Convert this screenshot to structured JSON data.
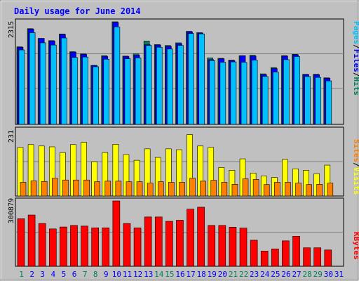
{
  "colors": {
    "background": "#c0c0c0",
    "title": "#0000ff",
    "hits": "#00805c",
    "files": "#0000ff",
    "pages": "#00c0ff",
    "visits": "#ffff00",
    "sites": "#ff8000",
    "kbytes": "#ff0000",
    "weekday_label": "#0000ff",
    "weekend_label": "#00805c"
  },
  "chart_data": {
    "type": "bar",
    "title": "Daily usage for June 2014",
    "days": [
      "1",
      "2",
      "3",
      "4",
      "5",
      "6",
      "7",
      "8",
      "9",
      "10",
      "11",
      "12",
      "13",
      "14",
      "15",
      "16",
      "17",
      "18",
      "19",
      "20",
      "21",
      "22",
      "23",
      "24",
      "25",
      "26",
      "27",
      "28",
      "29",
      "30",
      "31"
    ],
    "weekend_days": [
      "1",
      "7",
      "8",
      "14",
      "15",
      "21",
      "22",
      "28",
      "29"
    ],
    "panels": [
      {
        "id": "hits_files_pages",
        "scale_label": "2315",
        "ylim": [
          0,
          2315
        ],
        "legend": [
          "Pages",
          "/",
          "Files",
          "/",
          "Hits"
        ],
        "series": [
          {
            "name": "Hits",
            "values": [
              1750,
              2160,
              1940,
              1890,
              2040,
              1640,
              1590,
              1330,
              1550,
              2315,
              1540,
              1590,
              1880,
              1800,
              1780,
              1840,
              2100,
              2070,
              1500,
              1490,
              1450,
              1550,
              1560,
              1140,
              1280,
              1550,
              1580,
              1130,
              1130,
              1050,
              0
            ]
          },
          {
            "name": "Files",
            "values": [
              1740,
              2150,
              1940,
              1880,
              2030,
              1630,
              1580,
              1330,
              1530,
              2300,
              1530,
              1560,
              1800,
              1790,
              1760,
              1820,
              2090,
              2060,
              1460,
              1480,
              1440,
              1550,
              1540,
              1120,
              1260,
              1540,
              1570,
              1120,
              1120,
              1040,
              0
            ]
          },
          {
            "name": "Pages",
            "values": [
              1680,
              2070,
              1840,
              1790,
              1950,
              1510,
              1520,
              1300,
              1470,
              2200,
              1480,
              1500,
              1780,
              1740,
              1700,
              1780,
              2050,
              2040,
              1440,
              1400,
              1410,
              1400,
              1450,
              1080,
              1180,
              1460,
              1530,
              1080,
              1060,
              980,
              0
            ]
          }
        ]
      },
      {
        "id": "visits_sites",
        "scale_label": "231",
        "ylim": [
          0,
          231
        ],
        "legend": [
          "Sites",
          "/",
          "Visits"
        ],
        "series": [
          {
            "name": "Visits",
            "values": [
              170,
              180,
              175,
              172,
              152,
              180,
              188,
              120,
              152,
              181,
              145,
              125,
              165,
              135,
              165,
              162,
              215,
              175,
              170,
              100,
              90,
              130,
              80,
              70,
              65,
              128,
              95,
              90,
              78,
              108,
              0
            ]
          },
          {
            "name": "Sites",
            "values": [
              48,
              53,
              51,
              62,
              56,
              56,
              56,
              50,
              52,
              52,
              50,
              50,
              45,
              50,
              48,
              48,
              62,
              52,
              55,
              48,
              41,
              60,
              58,
              40,
              48,
              48,
              45,
              40,
              41,
              45,
              0
            ]
          }
        ]
      },
      {
        "id": "kbytes",
        "scale_label": "300879",
        "ylim": [
          0,
          300879
        ],
        "legend": [
          "KBytes"
        ],
        "series": [
          {
            "name": "KBytes",
            "values": [
              219000,
              236000,
              197000,
              172000,
              181000,
              188000,
              185000,
              177000,
              177000,
              300879,
              197000,
              177000,
              227000,
              227000,
              207000,
              212000,
              263000,
              272000,
              188000,
              188000,
              180000,
              176000,
              120000,
              70000,
              80000,
              117000,
              138000,
              85000,
              85000,
              75000,
              0
            ]
          }
        ]
      }
    ]
  }
}
